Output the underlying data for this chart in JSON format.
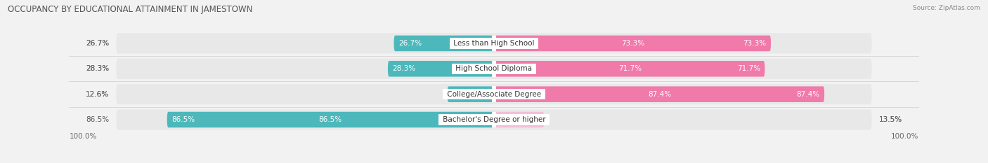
{
  "title": "OCCUPANCY BY EDUCATIONAL ATTAINMENT IN JAMESTOWN",
  "source": "Source: ZipAtlas.com",
  "categories": [
    "Less than High School",
    "High School Diploma",
    "College/Associate Degree",
    "Bachelor's Degree or higher"
  ],
  "owner_pct": [
    26.7,
    28.3,
    12.6,
    86.5
  ],
  "renter_pct": [
    73.3,
    71.7,
    87.4,
    13.5
  ],
  "owner_color": "#4db8bb",
  "renter_color": "#f07aaa",
  "renter_light_color": "#f5c0d5",
  "bg_color": "#f2f2f2",
  "bar_bg_color": "#e8e8e8",
  "bar_bg_shadow": "#d8d8d8",
  "title_fontsize": 8.5,
  "label_fontsize": 7.5,
  "tick_fontsize": 7.5,
  "bar_height": 0.62,
  "total_width": 100
}
